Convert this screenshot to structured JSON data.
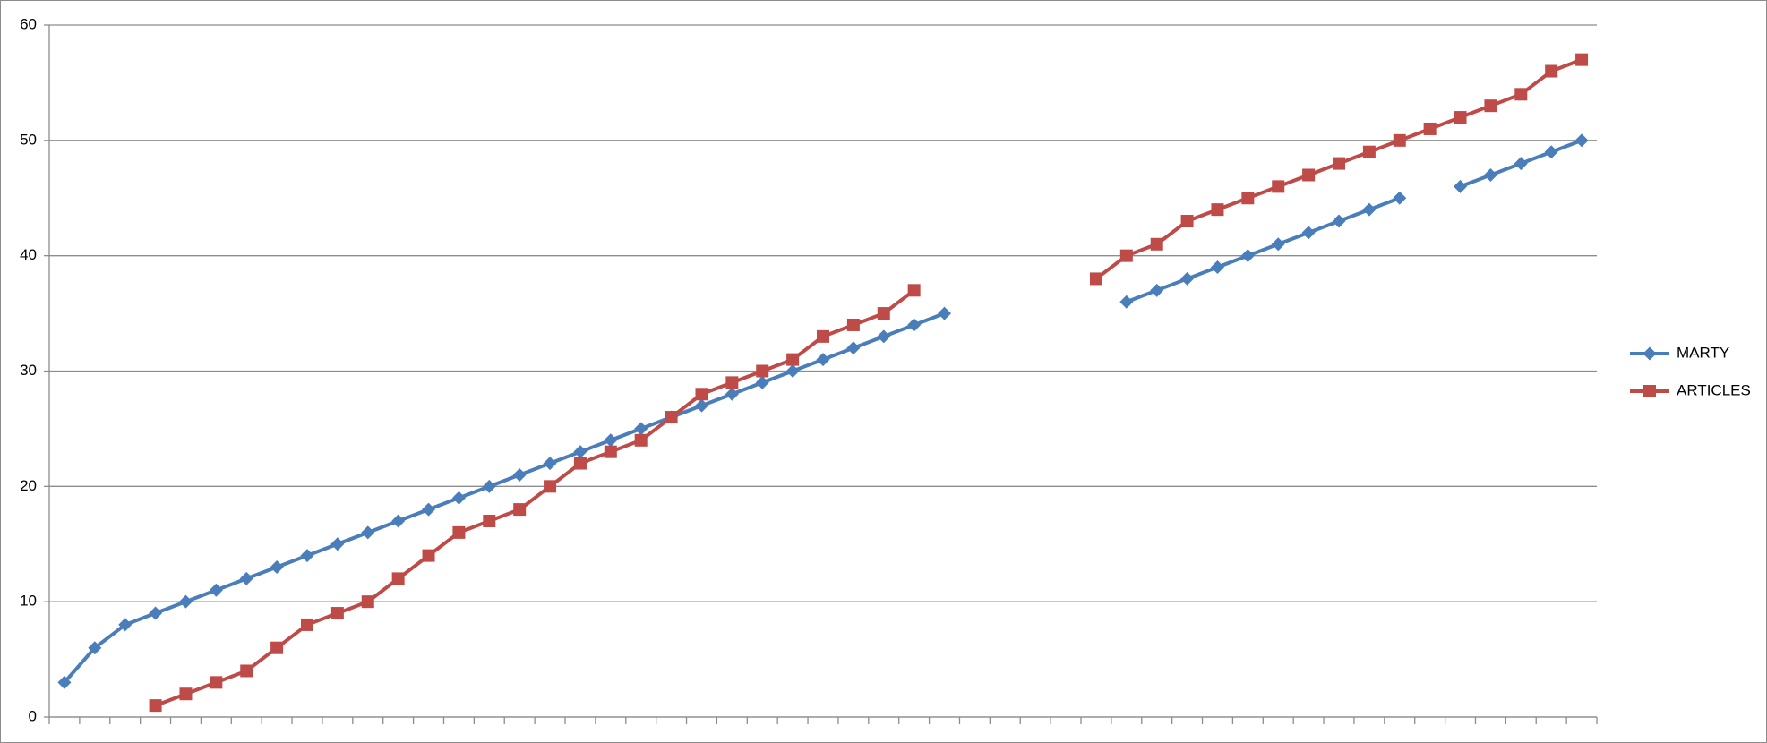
{
  "chart_data": {
    "type": "line",
    "categories": [
      null,
      null,
      null,
      null,
      null,
      null,
      null,
      null,
      null,
      null,
      null,
      null,
      null,
      null,
      null,
      null,
      null,
      null,
      null,
      null,
      null,
      null,
      null,
      null,
      null,
      null,
      null,
      null,
      null,
      null,
      null,
      null,
      null,
      null,
      null,
      null,
      null,
      null,
      null,
      null,
      null,
      null,
      null,
      null,
      null,
      null,
      null,
      null,
      null,
      null,
      null
    ],
    "series": [
      {
        "name": "MARTY",
        "color": "#4a7ebb",
        "marker": "diamond",
        "values": [
          3,
          6,
          8,
          9,
          10,
          11,
          12,
          13,
          14,
          15,
          16,
          17,
          18,
          19,
          20,
          21,
          22,
          23,
          24,
          25,
          26,
          27,
          28,
          29,
          30,
          31,
          32,
          33,
          34,
          35,
          null,
          null,
          null,
          null,
          null,
          36,
          37,
          38,
          39,
          40,
          41,
          42,
          43,
          44,
          45,
          null,
          46,
          47,
          48,
          49,
          50
        ]
      },
      {
        "name": "ARTICLES",
        "color": "#be4b48",
        "marker": "square",
        "values": [
          null,
          null,
          null,
          1,
          2,
          3,
          4,
          6,
          8,
          9,
          10,
          12,
          14,
          16,
          17,
          18,
          20,
          22,
          23,
          24,
          26,
          28,
          29,
          30,
          31,
          33,
          34,
          35,
          37,
          null,
          null,
          null,
          null,
          null,
          38,
          40,
          41,
          43,
          44,
          45,
          46,
          47,
          48,
          49,
          50,
          51,
          52,
          53,
          54,
          56,
          57
        ]
      }
    ],
    "ylim": [
      0,
      60
    ],
    "yticks": [
      0,
      10,
      20,
      30,
      40,
      50,
      60
    ],
    "grid": true,
    "legend": "right"
  }
}
